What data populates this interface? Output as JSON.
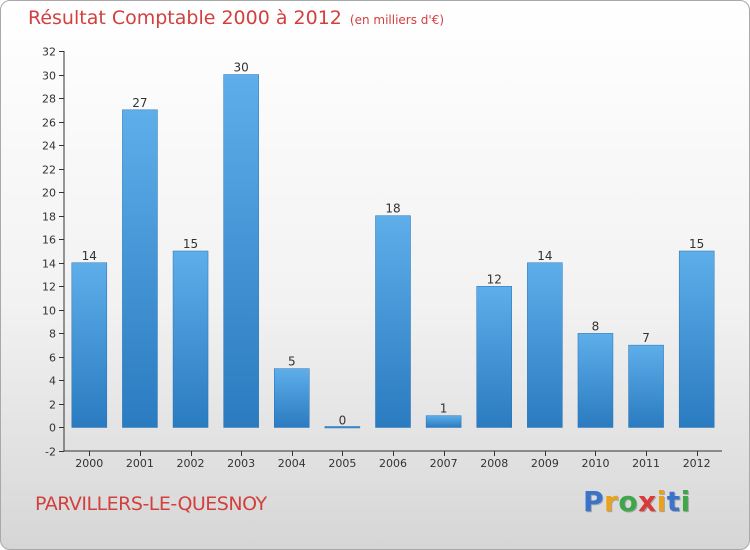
{
  "chart_data": {
    "type": "bar",
    "title": "Résultat Comptable 2000 à 2012",
    "subtitle": "(en milliers d'€)",
    "xlabel": "",
    "ylabel": "",
    "categories": [
      "2000",
      "2001",
      "2002",
      "2003",
      "2004",
      "2005",
      "2006",
      "2007",
      "2008",
      "2009",
      "2010",
      "2011",
      "2012"
    ],
    "values": [
      14,
      27,
      15,
      30,
      5,
      0,
      18,
      1,
      12,
      14,
      8,
      7,
      15
    ],
    "ylim": [
      -2,
      32
    ],
    "yticks": [
      -2,
      0,
      2,
      4,
      6,
      8,
      10,
      12,
      14,
      16,
      18,
      20,
      22,
      24,
      26,
      28,
      30,
      32
    ],
    "grid": false,
    "colors": {
      "bar_light": "#5eaeea",
      "bar_dark": "#2a7bc0"
    }
  },
  "commune": "PARVILLERS-LE-QUESNOY",
  "logo": {
    "letters": [
      "P",
      "r",
      "o",
      "x",
      "i",
      "t",
      "i"
    ],
    "colors": [
      "#3a73c9",
      "#e8a21d",
      "#3fa64a",
      "#d93b3b",
      "#e8a21d",
      "#3a73c9",
      "#3fa64a"
    ]
  },
  "colors": {
    "title": "#d2403e",
    "axis": "#333333"
  }
}
